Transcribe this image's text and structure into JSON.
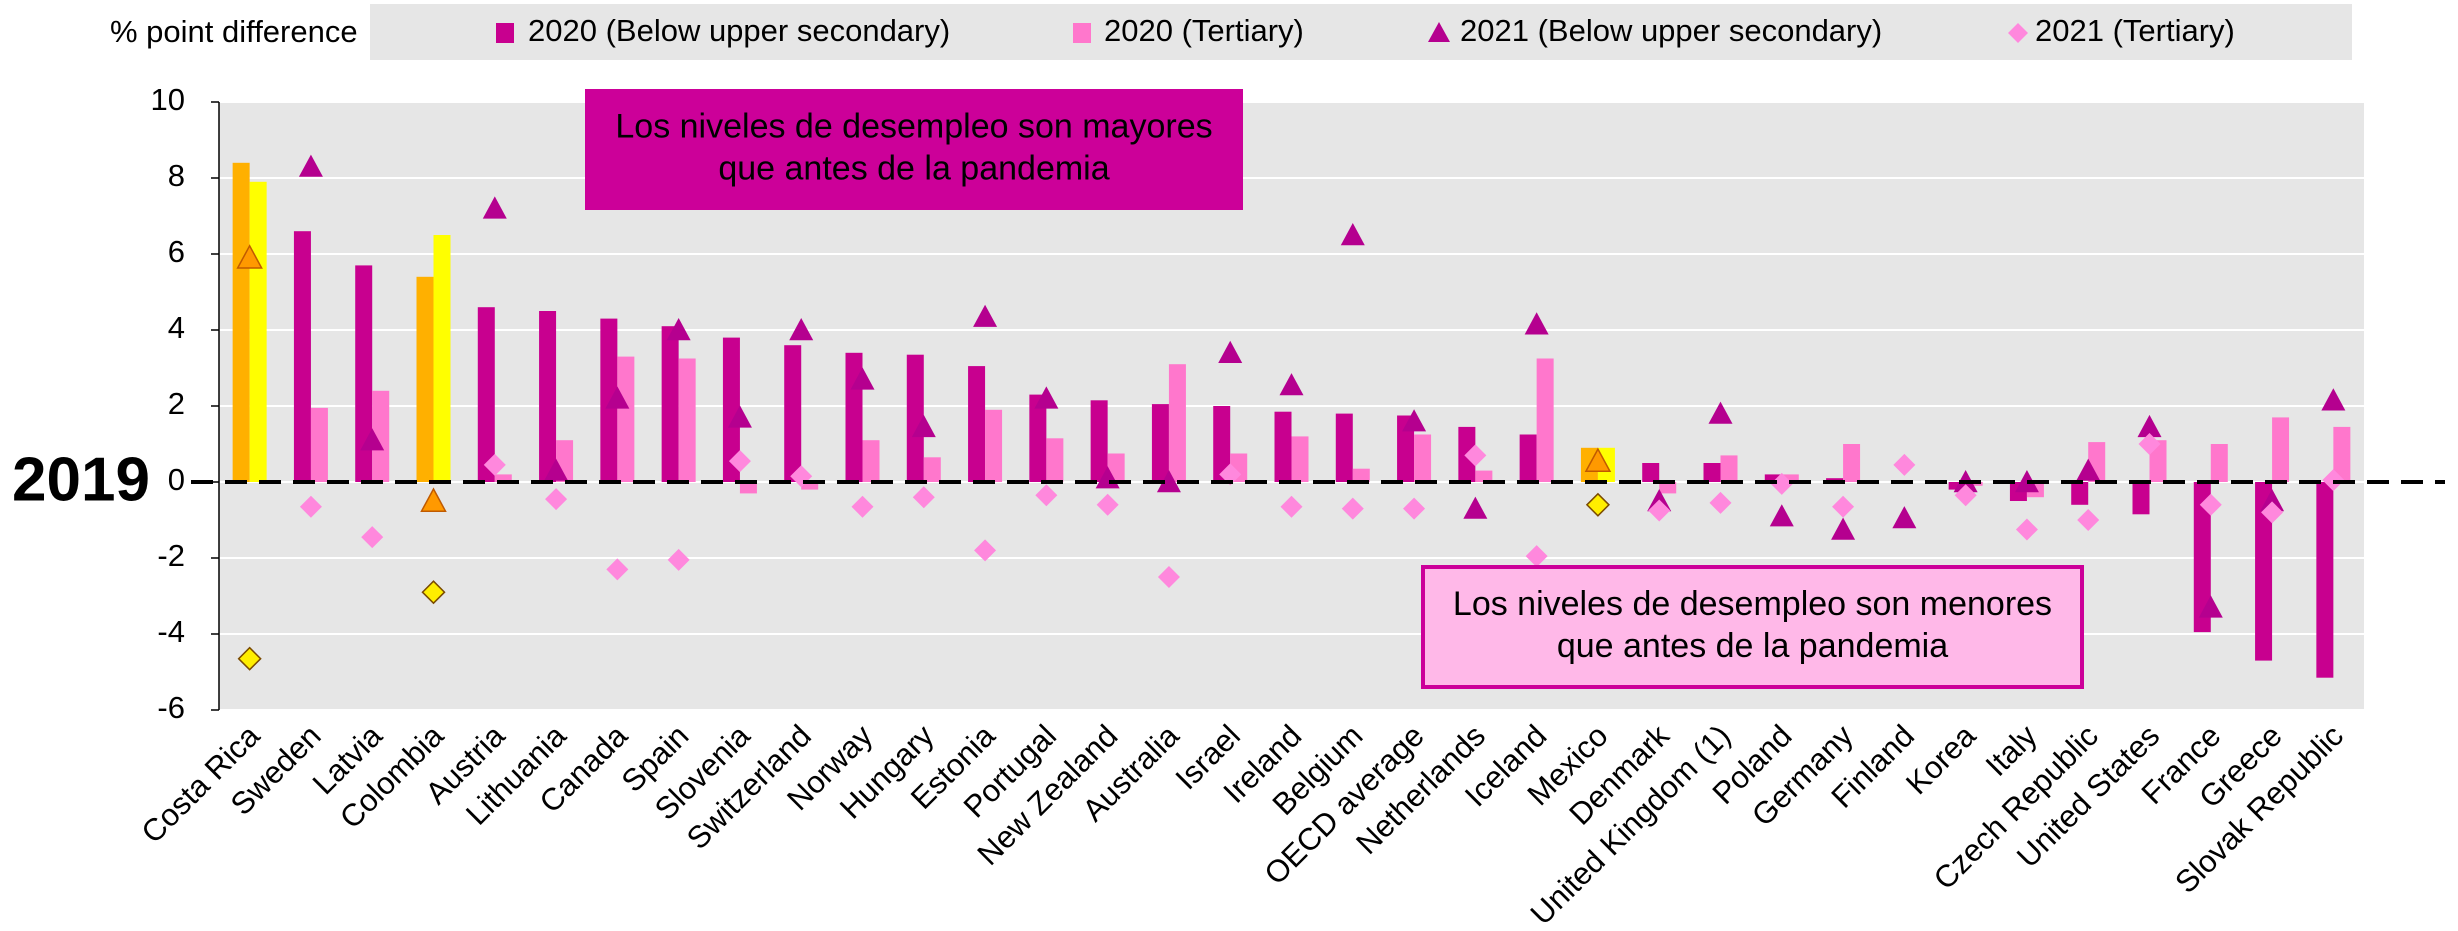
{
  "chart_data": {
    "type": "bar",
    "ylabel": "% point difference",
    "categories": [
      "Costa Rica",
      "Sweden",
      "Latvia",
      "Colombia",
      "Austria",
      "Lithuania",
      "Canada",
      "Spain",
      "Slovenia",
      "Switzerland",
      "Norway",
      "Hungary",
      "Estonia",
      "Portugal",
      "New Zealand",
      "Australia",
      "Israel",
      "Ireland",
      "Belgium",
      "OECD average",
      "Netherlands",
      "Iceland",
      "Mexico",
      "Denmark",
      "United Kingdom (1)",
      "Poland",
      "Germany",
      "Finland",
      "Korea",
      "Italy",
      "Czech Republic",
      "United States",
      "France",
      "Greece",
      "Slovak Republic"
    ],
    "series": [
      {
        "name": "2020 (Below upper secondary)",
        "marker": "bar",
        "color": "#c8008f",
        "highlight_color": "#ffb000",
        "values": [
          8.4,
          6.6,
          5.7,
          5.4,
          4.6,
          4.5,
          4.3,
          4.1,
          3.8,
          3.6,
          3.4,
          3.35,
          3.05,
          2.3,
          2.15,
          2.05,
          2.0,
          1.85,
          1.8,
          1.75,
          1.45,
          1.25,
          0.9,
          0.5,
          0.5,
          0.2,
          0.1,
          0,
          -0.2,
          -0.5,
          -0.6,
          -0.85,
          -3.95,
          -4.7,
          -5.15
        ]
      },
      {
        "name": "2020 (Tertiary)",
        "marker": "bar",
        "color": "#ff77cc",
        "highlight_color": "#ffff00",
        "values": [
          7.9,
          1.95,
          2.4,
          6.5,
          0.2,
          1.1,
          3.3,
          3.25,
          -0.3,
          -0.2,
          1.1,
          0.65,
          1.9,
          1.15,
          0.75,
          3.1,
          0.75,
          1.2,
          0.35,
          1.25,
          0.3,
          3.25,
          0.9,
          -0.3,
          0.7,
          0.2,
          1.0,
          0,
          -0.1,
          -0.4,
          1.05,
          1.1,
          1.0,
          1.7,
          1.45
        ]
      },
      {
        "name": "2021 (Below upper secondary)",
        "marker": "triangle",
        "color": "#b5008f",
        "highlight_color": "#ff9900",
        "values": [
          5.9,
          8.3,
          1.1,
          -0.5,
          7.2,
          0.3,
          2.2,
          4.0,
          1.7,
          4.0,
          2.7,
          1.45,
          4.35,
          2.2,
          0.1,
          0.0,
          3.4,
          2.55,
          6.5,
          1.6,
          -0.7,
          4.15,
          0.55,
          -0.5,
          1.8,
          -0.9,
          -1.25,
          -0.95,
          0,
          0,
          0.3,
          1.45,
          -3.3,
          -0.5,
          2.15
        ]
      },
      {
        "name": "2021 (Tertiary)",
        "marker": "diamond",
        "color": "#ff88dd",
        "highlight_color": "#ffee00",
        "values": [
          -4.65,
          -0.65,
          -1.45,
          -2.9,
          0.45,
          -0.45,
          -2.3,
          -2.05,
          0.55,
          0.15,
          -0.65,
          -0.4,
          -1.8,
          -0.35,
          -0.6,
          -2.5,
          0.2,
          -0.65,
          -0.7,
          -0.7,
          0.7,
          -1.95,
          -0.6,
          -0.75,
          -0.55,
          -0.05,
          -0.65,
          0.45,
          -0.35,
          -1.25,
          -1.0,
          1.0,
          -0.6,
          -0.8,
          0.05
        ]
      }
    ],
    "highlight_indices": [
      0,
      3,
      22
    ],
    "ylim": [
      -6,
      10
    ],
    "yticks": [
      -6,
      -4,
      -2,
      0,
      2,
      4,
      6,
      8,
      10
    ],
    "grid": true,
    "reference": {
      "label": "2019",
      "value": 0
    },
    "annotations": [
      {
        "lines": [
          "Los niveles de desempleo son mayores",
          "que antes de la pandemia"
        ],
        "style": "filled"
      },
      {
        "lines": [
          "Los niveles de desempleo son menores",
          "que antes de la pandemia"
        ],
        "style": "outlined"
      }
    ]
  }
}
